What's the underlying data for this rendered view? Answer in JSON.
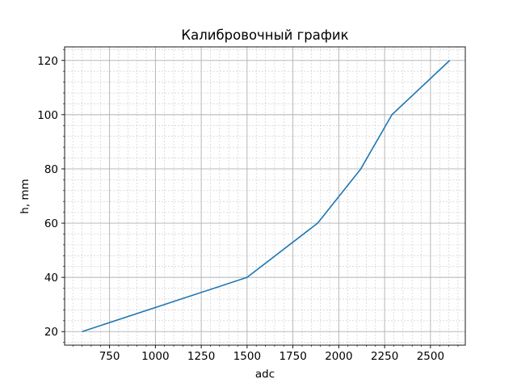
{
  "chart_data": {
    "type": "line",
    "title": "Калибровочный график",
    "xlabel": "adc",
    "ylabel": "h, mm",
    "xlim": [
      505,
      2690
    ],
    "ylim": [
      15,
      125
    ],
    "x_ticks": [
      750,
      1000,
      1250,
      1500,
      1750,
      2000,
      2250,
      2500
    ],
    "x_tick_labels": [
      "750",
      "1000",
      "1250",
      "1500",
      "1750",
      "2000",
      "2250",
      "2500"
    ],
    "y_ticks": [
      20,
      40,
      60,
      80,
      100,
      120
    ],
    "y_tick_labels": [
      "20",
      "40",
      "60",
      "80",
      "100",
      "120"
    ],
    "grid": "major and minor",
    "line_color": "#1f77b4",
    "series": [
      {
        "x": [
          600,
          1500,
          1885,
          2120,
          2290,
          2605
        ],
        "y": [
          20,
          40,
          60,
          80,
          100,
          120
        ]
      }
    ]
  }
}
